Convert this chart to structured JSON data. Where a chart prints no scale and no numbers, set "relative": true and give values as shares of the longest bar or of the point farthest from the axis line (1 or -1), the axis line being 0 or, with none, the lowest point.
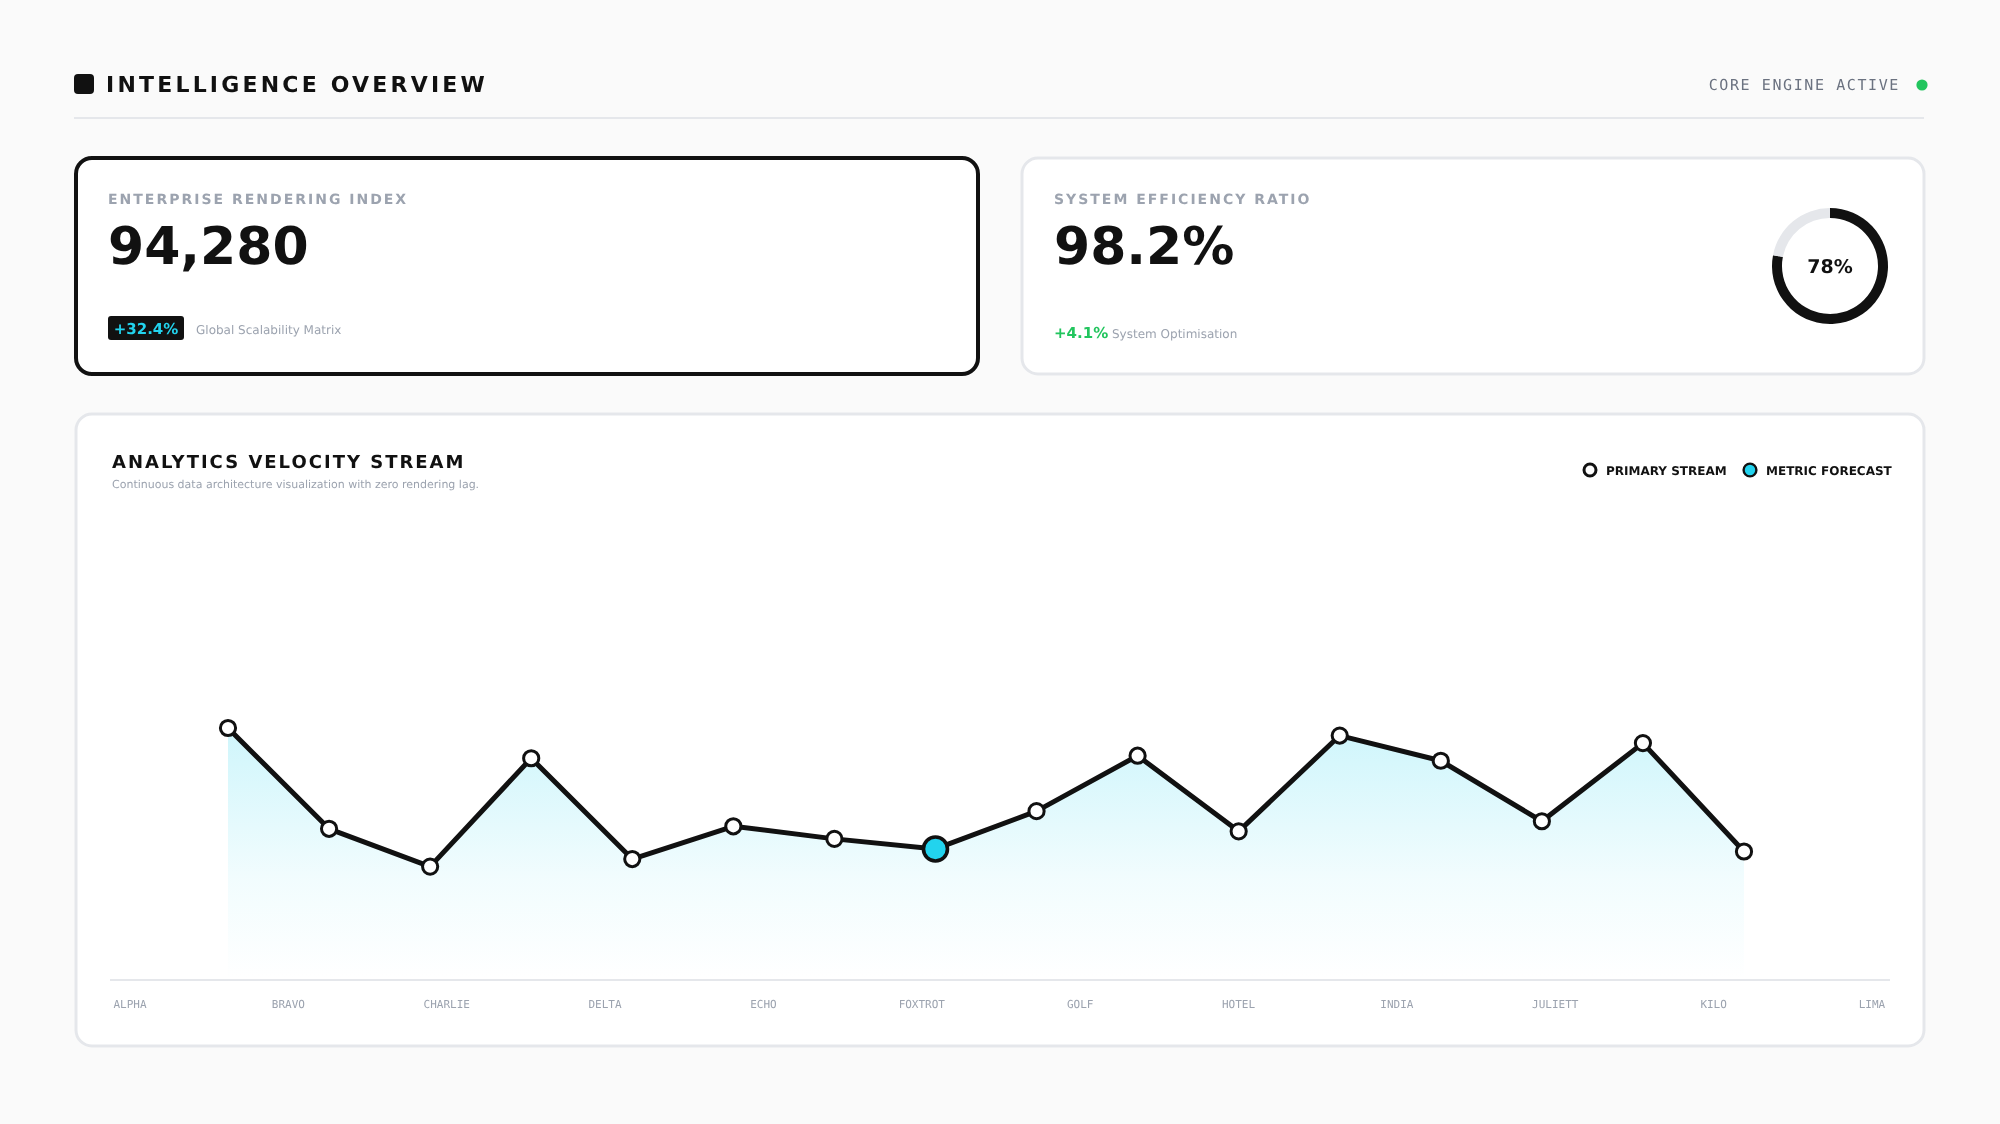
{
  "chart_data": [
    {
      "type": "other",
      "title": "INTELLIGENCE OVERVIEW",
      "annotations": [
        "CORE ENGINE ACTIVE"
      ]
    },
    {
      "type": "other",
      "title": "ENTERPRISE RENDERING INDEX",
      "annotations": [
        "94,280",
        "+32.4%",
        "Global Scalability Matrix"
      ]
    },
    {
      "type": "other",
      "title": "SYSTEM EFFICIENCY RATIO",
      "annotations": [
        "98.2%",
        "+4.1%",
        "System Optimisation"
      ]
    },
    {
      "type": "donut",
      "categories": [
        null,
        null
      ],
      "values": [
        78,
        22
      ],
      "colors": [
        "#111111",
        "#e5e7eb"
      ],
      "value_labels": [
        "78%",
        null
      ]
    },
    {
      "type": "line",
      "title": "ANALYTICS VELOCITY STREAM",
      "subtitle": "Continuous data architecture visualization with zero rendering lag.",
      "relative": true,
      "legend": "top right",
      "marker": "circle",
      "line_style": "solid",
      "annotations": [
        "ALPHA",
        "BRAVO",
        "CHARLIE",
        "DELTA",
        "ECHO",
        "FOXTROT",
        "GOLF",
        "HOTEL",
        "INDIA",
        "JULIETT",
        "KILO",
        "LIMA"
      ],
      "categories": [
        null,
        null,
        null,
        null,
        null,
        null,
        null,
        null,
        null,
        null,
        null,
        null,
        null,
        null,
        null,
        null
      ],
      "series": [
        {
          "name": "PRIMARY STREAM",
          "type": "area",
          "color": "#111111",
          "values": [
            1.0,
            0.6,
            0.45,
            0.88,
            0.48,
            0.61,
            0.56,
            0.52,
            0.67,
            0.89,
            0.59,
            0.97,
            0.87,
            0.63,
            0.94,
            0.51
          ]
        },
        {
          "name": "METRIC FORECAST",
          "type": "line",
          "color": "#22d3ee",
          "values": [
            null,
            null,
            null,
            null,
            null,
            null,
            null,
            0.52,
            null,
            null,
            null,
            null,
            null,
            null,
            null,
            null
          ]
        }
      ]
    }
  ]
}
